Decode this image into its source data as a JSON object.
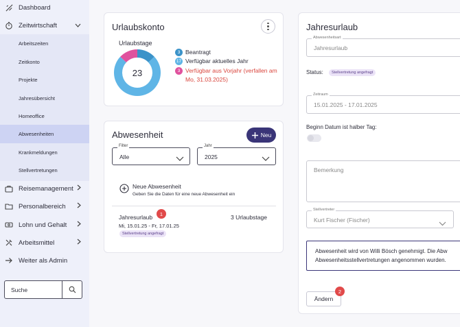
{
  "sidebar": {
    "items": [
      {
        "label": "Dashboard"
      },
      {
        "label": "Zeitwirtschaft"
      },
      {
        "label": "Reisemanagement"
      },
      {
        "label": "Personalbereich"
      },
      {
        "label": "Lohn und Gehalt"
      },
      {
        "label": "Arbeitsmittel"
      },
      {
        "label": "Weiter als Admin"
      }
    ],
    "subitems": [
      {
        "label": "Arbeitszeiten"
      },
      {
        "label": "Zeitkonto"
      },
      {
        "label": "Projekte"
      },
      {
        "label": "Jahresübersicht"
      },
      {
        "label": "Homeoffice"
      },
      {
        "label": "Abwesenheiten",
        "active": true
      },
      {
        "label": "Krankmeldungen"
      },
      {
        "label": "Stellvertretungen"
      }
    ],
    "search_label": "Suche"
  },
  "urlaubskonto": {
    "title": "Urlaubskonto",
    "chart_caption": "Urlaubstage",
    "center_value": "23",
    "legend": [
      {
        "count": "3",
        "label": "Beantragt",
        "color": "#3b93c9"
      },
      {
        "count": "17",
        "label": "Verfügbar aktuelles Jahr",
        "color": "#5fb5e6"
      },
      {
        "count": "3",
        "label": "Verfügbar aus Vorjahr (verfallen am Mo, 31.03.2025)",
        "color": "#e0529e"
      }
    ]
  },
  "chart_data": {
    "type": "pie",
    "title": "Urlaubstage",
    "series": [
      {
        "values": [
          3,
          17,
          3
        ]
      }
    ],
    "categories": [
      "Beantragt",
      "Verfügbar aktuelles Jahr",
      "Verfügbar aus Vorjahr (verfallen am Mo, 31.03.2025)"
    ]
  },
  "abwesenheit": {
    "title": "Abwesenheit",
    "new_button": "Neu",
    "filter": {
      "label": "Filter",
      "value": "Alle"
    },
    "year": {
      "label": "Jahr",
      "value": "2025"
    },
    "new_title": "Neue Abwesenheit",
    "new_hint": "Geben Sie die Daten für eine neue Abwesenheit ein",
    "entry": {
      "title": "Jahresurlaub",
      "dates": "Mi, 15.01.25 - Fr, 17.01.25",
      "tag": "Stellvertretung angefragt",
      "days": "3 Urlaubstage",
      "badge": "1"
    }
  },
  "detail": {
    "title": "Jahresurlaub",
    "type_label": "Abwesenheitsart",
    "type_value": "Jahresurlaub",
    "status_label": "Status:",
    "status_tag": "Stellvertretung angefragt",
    "period_label": "Zeitraum",
    "period_value": "15.01.2025 - 17.01.2025",
    "halfday_label": "Beginn Datum ist halber Tag:",
    "remark_placeholder": "Bemerkung",
    "substitute_label": "Stellvertreter",
    "substitute_value": "Kurt Fischer (Fischer)",
    "info_line1": "Abwesenheit wird von Willi Bösch genehmigt. Die Abw",
    "info_line2": "Abwesenheitsstellvertretungen angenommen wurden.",
    "change_button": "Ändern",
    "badge": "2"
  }
}
